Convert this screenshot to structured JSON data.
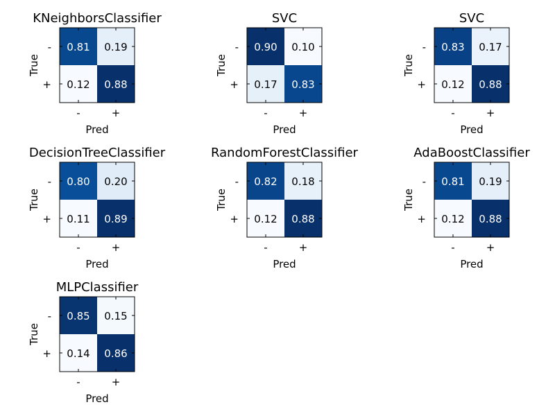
{
  "chart_data": [
    {
      "type": "heatmap",
      "title": "KNeighborsClassifier",
      "xlabel": "Pred",
      "ylabel": "True",
      "x_categories": [
        "-",
        "+"
      ],
      "y_categories": [
        "-",
        "+"
      ],
      "values": [
        [
          0.81,
          0.19
        ],
        [
          0.12,
          0.88
        ]
      ],
      "labels": [
        [
          "0.81",
          "0.19"
        ],
        [
          "0.12",
          "0.88"
        ]
      ]
    },
    {
      "type": "heatmap",
      "title": "SVC",
      "xlabel": "Pred",
      "ylabel": "True",
      "x_categories": [
        "-",
        "+"
      ],
      "y_categories": [
        "-",
        "+"
      ],
      "values": [
        [
          0.9,
          0.1
        ],
        [
          0.17,
          0.83
        ]
      ],
      "labels": [
        [
          "0.90",
          "0.10"
        ],
        [
          "0.17",
          "0.83"
        ]
      ]
    },
    {
      "type": "heatmap",
      "title": "SVC",
      "xlabel": "Pred",
      "ylabel": "True",
      "x_categories": [
        "-",
        "+"
      ],
      "y_categories": [
        "-",
        "+"
      ],
      "values": [
        [
          0.83,
          0.17
        ],
        [
          0.12,
          0.88
        ]
      ],
      "labels": [
        [
          "0.83",
          "0.17"
        ],
        [
          "0.12",
          "0.88"
        ]
      ]
    },
    {
      "type": "heatmap",
      "title": "DecisionTreeClassifier",
      "xlabel": "Pred",
      "ylabel": "True",
      "x_categories": [
        "-",
        "+"
      ],
      "y_categories": [
        "-",
        "+"
      ],
      "values": [
        [
          0.8,
          0.2
        ],
        [
          0.11,
          0.89
        ]
      ],
      "labels": [
        [
          "0.80",
          "0.20"
        ],
        [
          "0.11",
          "0.89"
        ]
      ]
    },
    {
      "type": "heatmap",
      "title": "RandomForestClassifier",
      "xlabel": "Pred",
      "ylabel": "True",
      "x_categories": [
        "-",
        "+"
      ],
      "y_categories": [
        "-",
        "+"
      ],
      "values": [
        [
          0.82,
          0.18
        ],
        [
          0.12,
          0.88
        ]
      ],
      "labels": [
        [
          "0.82",
          "0.18"
        ],
        [
          "0.12",
          "0.88"
        ]
      ]
    },
    {
      "type": "heatmap",
      "title": "AdaBoostClassifier",
      "xlabel": "Pred",
      "ylabel": "True",
      "x_categories": [
        "-",
        "+"
      ],
      "y_categories": [
        "-",
        "+"
      ],
      "values": [
        [
          0.81,
          0.19
        ],
        [
          0.12,
          0.88
        ]
      ],
      "labels": [
        [
          "0.81",
          "0.19"
        ],
        [
          "0.12",
          "0.88"
        ]
      ]
    },
    {
      "type": "heatmap",
      "title": "MLPClassifier",
      "xlabel": "Pred",
      "ylabel": "True",
      "x_categories": [
        "-",
        "+"
      ],
      "y_categories": [
        "-",
        "+"
      ],
      "values": [
        [
          0.85,
          0.15
        ],
        [
          0.14,
          0.86
        ]
      ],
      "labels": [
        [
          "0.85",
          "0.15"
        ],
        [
          "0.14",
          "0.86"
        ]
      ]
    }
  ],
  "colors": {
    "colormap": "Blues",
    "text_on_dark": "#ffffff",
    "text_on_light": "#000000",
    "frame": "#000000"
  }
}
